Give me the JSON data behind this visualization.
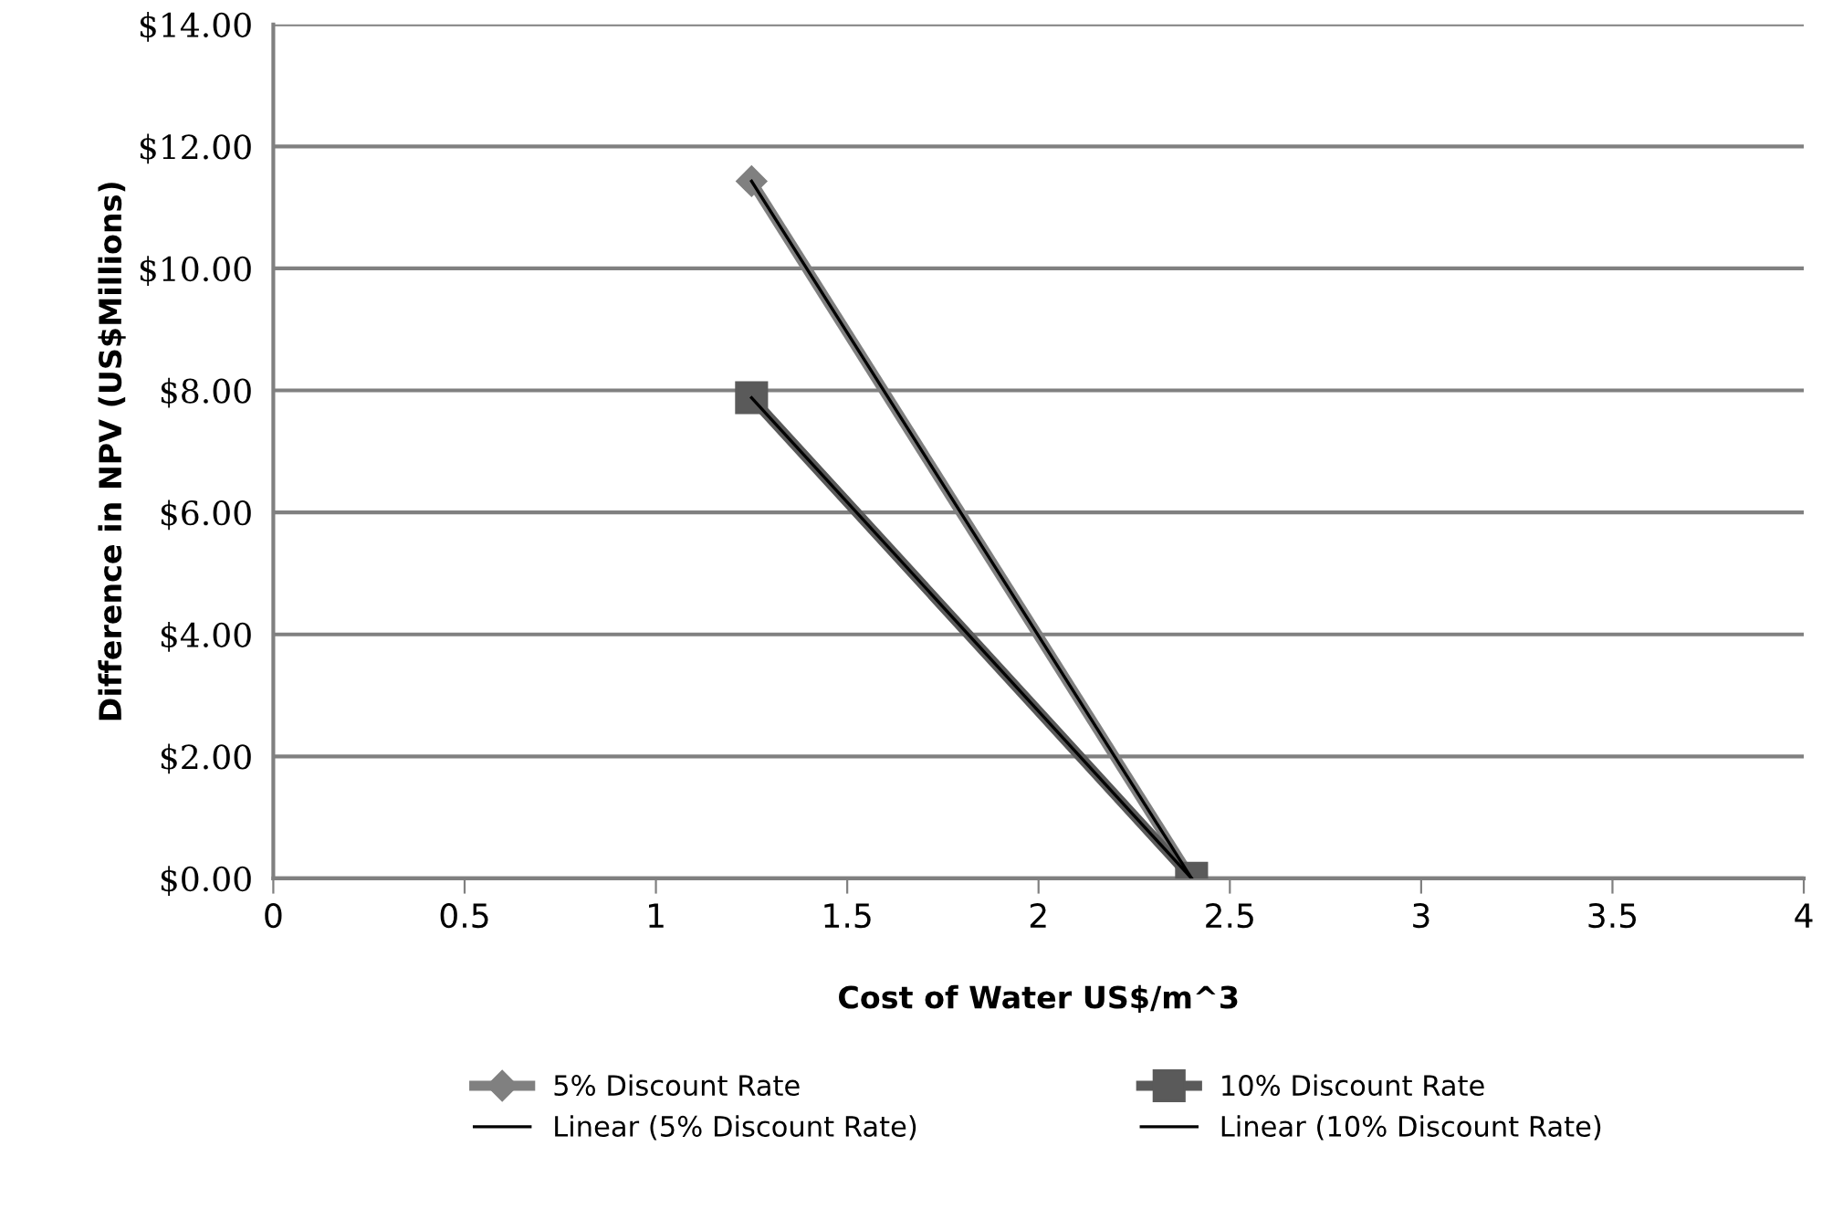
{
  "chart_data": {
    "type": "line",
    "xlabel": "Cost of Water US$/m^3",
    "ylabel": "Difference in NPV (US$Millions)",
    "xlim": [
      0,
      4
    ],
    "xticks": [
      0,
      0.5,
      1,
      1.5,
      2,
      2.5,
      3,
      3.5,
      4
    ],
    "ylim": [
      0,
      14
    ],
    "yticks": [
      {
        "value": 0,
        "label": "$0.00"
      },
      {
        "value": 2,
        "label": "$2.00"
      },
      {
        "value": 4,
        "label": "$4.00"
      },
      {
        "value": 6,
        "label": "$6.00"
      },
      {
        "value": 8,
        "label": "$8.00"
      },
      {
        "value": 10,
        "label": "$10.00"
      },
      {
        "value": 12,
        "label": "$12.00"
      },
      {
        "value": 14,
        "label": "$14.00"
      }
    ],
    "grid": "y",
    "legend": "bottom",
    "x": [
      1.25,
      2.4
    ],
    "series": [
      {
        "name": "5% Discount Rate",
        "color": "#808080",
        "marker": "diamond",
        "values": [
          11.43,
          0
        ]
      },
      {
        "name": "10% Discount Rate",
        "color": "#5a5a5a",
        "marker": "square",
        "values": [
          7.88,
          0
        ]
      },
      {
        "name": "Linear (5% Discount Rate)",
        "color": "#000000",
        "marker": "none",
        "values": [
          11.43,
          0
        ]
      },
      {
        "name": "Linear (10% Discount Rate)",
        "color": "#000000",
        "marker": "none",
        "values": [
          7.88,
          0
        ]
      }
    ]
  }
}
